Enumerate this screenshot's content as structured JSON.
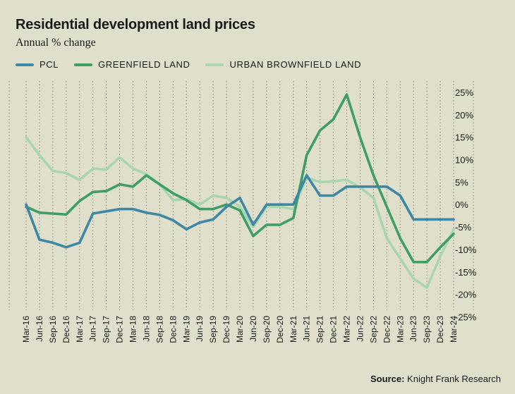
{
  "title": "Residential development land prices",
  "subtitle": "Annual % change",
  "source_label": "Source:",
  "source_text": "Knight Frank Research",
  "colors": {
    "background": "#dfdfcb",
    "pcl": "#3e88a5",
    "greenfield": "#3f9e66",
    "brownfield": "#a9d6b0",
    "grid": "#888877"
  },
  "chart_data": {
    "type": "line",
    "title": "Residential development land prices",
    "ylabel": "Annual % change",
    "xlabel": "",
    "ylim": [
      -25,
      25
    ],
    "yticks": [
      25,
      20,
      15,
      10,
      5,
      0,
      -5,
      -10,
      -15,
      -20,
      -25
    ],
    "ytick_labels": [
      "25%",
      "20%",
      "15%",
      "10%",
      "5%",
      "0%",
      "-5%",
      "-10%",
      "-15%",
      "-20%",
      "-25%"
    ],
    "grid": "vertical-dotted",
    "legend": "top-left",
    "categories": [
      "Mar-16",
      "Jun-16",
      "Sep-16",
      "Dec-16",
      "Mar-17",
      "Jun-17",
      "Sep-17",
      "Dec-17",
      "Mar-18",
      "Jun-18",
      "Sep-18",
      "Dec-18",
      "Mar-19",
      "Jun-19",
      "Sep-19",
      "Dec-19",
      "Mar-20",
      "Jun-20",
      "Sep-20",
      "Dec-20",
      "Mar-21",
      "Jun-21",
      "Sep-21",
      "Dec-21",
      "Mar-22",
      "Jun-22",
      "Sep-22",
      "Dec-22",
      "Mar-23",
      "Jun-23",
      "Sep-23",
      "Dec-23",
      "Mar-24"
    ],
    "series": [
      {
        "name": "URBAN BROWNFIELD LAND",
        "key": "brownfield",
        "values": [
          15,
          11,
          7.5,
          7,
          5.5,
          8,
          7.8,
          10.5,
          8,
          6.8,
          4.5,
          1,
          1.2,
          0,
          2,
          1.5,
          -0.5,
          -5,
          -0.5,
          -0.5,
          -1,
          6,
          5,
          5.2,
          5.5,
          3.8,
          1.5,
          -7.5,
          -12,
          -16.5,
          -18.5,
          -11.5,
          -5.5
        ]
      },
      {
        "name": "GREENFIELD LAND",
        "key": "greenfield",
        "values": [
          -0.5,
          -1.8,
          -2,
          -2.2,
          0.8,
          2.8,
          3,
          4.5,
          4,
          6.5,
          4.5,
          2.5,
          1,
          -1,
          -1,
          0,
          -1.3,
          -7,
          -4.5,
          -4.5,
          -3,
          11,
          16.5,
          19,
          24.5,
          15,
          6.5,
          -0.5,
          -7.5,
          -12.8,
          -12.8,
          -9.5,
          -6.5
        ]
      },
      {
        "name": "PCL",
        "key": "pcl",
        "values": [
          0,
          -7.8,
          -8.5,
          -9.5,
          -8.5,
          -2,
          -1.5,
          -1,
          -1,
          -1.8,
          -2.3,
          -3.5,
          -5.5,
          -4,
          -3.3,
          -0.5,
          1.5,
          -4.5,
          0,
          0,
          0,
          6.5,
          2,
          2,
          4,
          4,
          4,
          4,
          2,
          -3.3,
          -3.3,
          -3.3,
          -3.3
        ]
      }
    ]
  }
}
